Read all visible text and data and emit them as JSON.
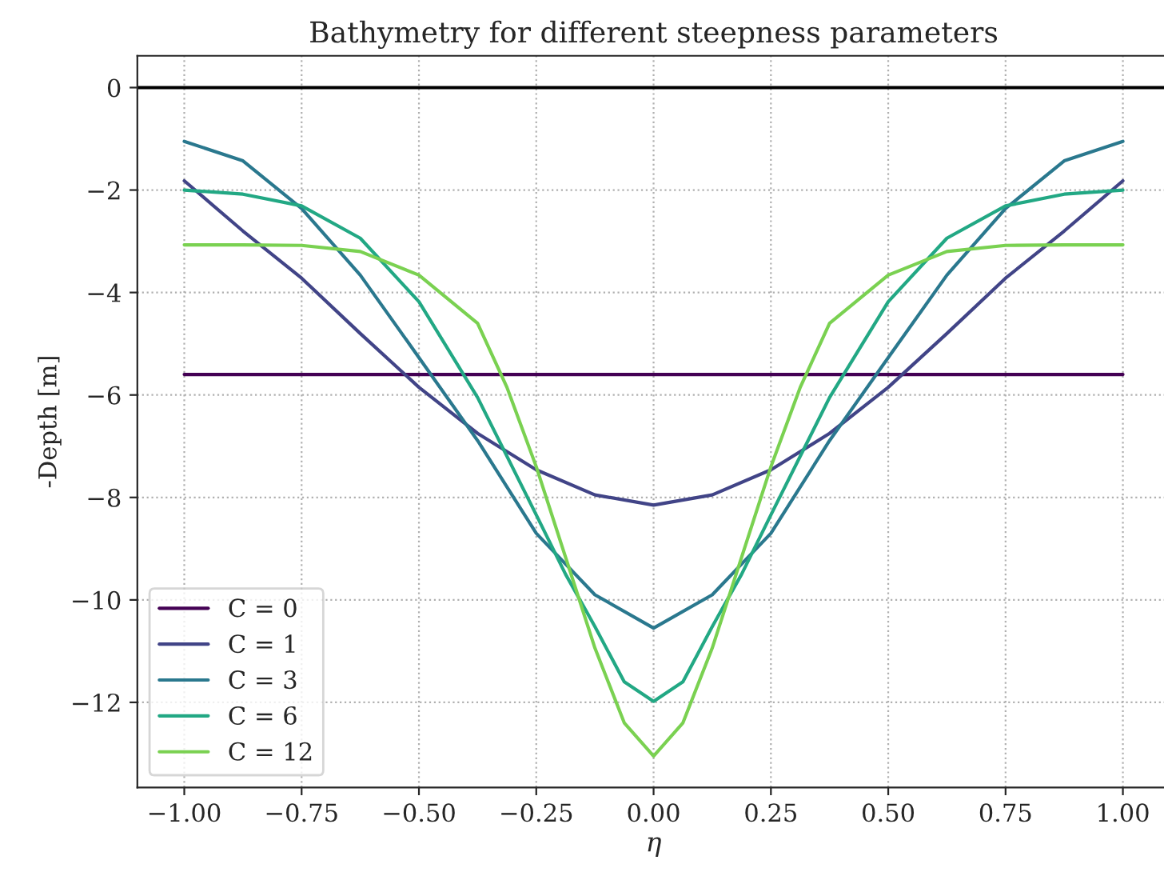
{
  "chart_data": {
    "type": "line",
    "title": "Bathymetry for different steepness parameters",
    "xlabel": "η",
    "ylabel": "-Depth [m]",
    "series": [
      {
        "name": "C = 0",
        "color": "#440154",
        "x": [
          -1,
          1
        ],
        "values": [
          -5.6,
          -5.6
        ]
      },
      {
        "name": "C = 1",
        "color": "#414487",
        "x": [
          -1,
          -0.875,
          -0.75,
          -0.625,
          -0.5,
          -0.375,
          -0.25,
          -0.125,
          0,
          0.125,
          0.25,
          0.375,
          0.5,
          0.625,
          0.75,
          0.875,
          1
        ],
        "values": [
          -1.82,
          -2.8,
          -3.72,
          -4.8,
          -5.85,
          -6.75,
          -7.46,
          -7.95,
          -8.15,
          -7.95,
          -7.46,
          -6.75,
          -5.85,
          -4.8,
          -3.72,
          -2.8,
          -1.82
        ]
      },
      {
        "name": "C = 3",
        "color": "#2a788e",
        "x": [
          -1,
          -0.875,
          -0.75,
          -0.625,
          -0.5,
          -0.375,
          -0.25,
          -0.125,
          0,
          0.125,
          0.25,
          0.375,
          0.5,
          0.625,
          0.75,
          0.875,
          1
        ],
        "values": [
          -1.05,
          -1.43,
          -2.36,
          -3.66,
          -5.27,
          -6.89,
          -8.7,
          -9.9,
          -10.55,
          -9.9,
          -8.7,
          -6.89,
          -5.27,
          -3.66,
          -2.36,
          -1.43,
          -1.05
        ]
      },
      {
        "name": "C = 6",
        "color": "#22a884",
        "x": [
          -1,
          -0.875,
          -0.75,
          -0.625,
          -0.5,
          -0.375,
          -0.25,
          -0.1875,
          -0.125,
          -0.0625,
          0,
          0.0625,
          0.125,
          0.1875,
          0.25,
          0.375,
          0.5,
          0.625,
          0.75,
          0.875,
          1
        ],
        "values": [
          -2.0,
          -2.08,
          -2.31,
          -2.94,
          -4.18,
          -6.05,
          -8.34,
          -9.5,
          -10.52,
          -11.6,
          -11.98,
          -11.6,
          -10.52,
          -9.5,
          -8.34,
          -6.05,
          -4.18,
          -2.94,
          -2.31,
          -2.08,
          -2.0
        ]
      },
      {
        "name": "C = 12",
        "color": "#7ad151",
        "x": [
          -1,
          -0.875,
          -0.75,
          -0.625,
          -0.5,
          -0.375,
          -0.3125,
          -0.25,
          -0.1875,
          -0.125,
          -0.0625,
          0,
          0.0625,
          0.125,
          0.1875,
          0.25,
          0.3125,
          0.375,
          0.5,
          0.625,
          0.75,
          0.875,
          1
        ],
        "values": [
          -3.07,
          -3.07,
          -3.08,
          -3.2,
          -3.66,
          -4.6,
          -5.85,
          -7.4,
          -9.17,
          -10.94,
          -12.4,
          -13.05,
          -12.4,
          -10.94,
          -9.17,
          -7.4,
          -5.85,
          -4.6,
          -3.66,
          -3.2,
          -3.08,
          -3.07,
          -3.07
        ]
      }
    ],
    "ref_lines": [
      {
        "axis": "y",
        "value": 0,
        "color": "#000000",
        "line_style": "solid"
      }
    ],
    "xlim": [
      -1.1,
      1.1
    ],
    "ylim": [
      -13.66,
      0.62
    ],
    "xticks": [
      {
        "value": -1,
        "label": "−1.00"
      },
      {
        "value": -0.75,
        "label": "−0.75"
      },
      {
        "value": -0.5,
        "label": "−0.50"
      },
      {
        "value": -0.25,
        "label": "−0.25"
      },
      {
        "value": 0,
        "label": "0.00"
      },
      {
        "value": 0.25,
        "label": "0.25"
      },
      {
        "value": 0.5,
        "label": "0.50"
      },
      {
        "value": 0.75,
        "label": "0.75"
      },
      {
        "value": 1,
        "label": "1.00"
      }
    ],
    "yticks": [
      {
        "value": -12,
        "label": "−12"
      },
      {
        "value": -10,
        "label": "−10"
      },
      {
        "value": -8,
        "label": "−8"
      },
      {
        "value": -6,
        "label": "−6"
      },
      {
        "value": -4,
        "label": "−4"
      },
      {
        "value": -2,
        "label": "−2"
      },
      0
    ],
    "grid": true,
    "legend": "bottom left",
    "line_style": "solid",
    "marker": "none"
  }
}
